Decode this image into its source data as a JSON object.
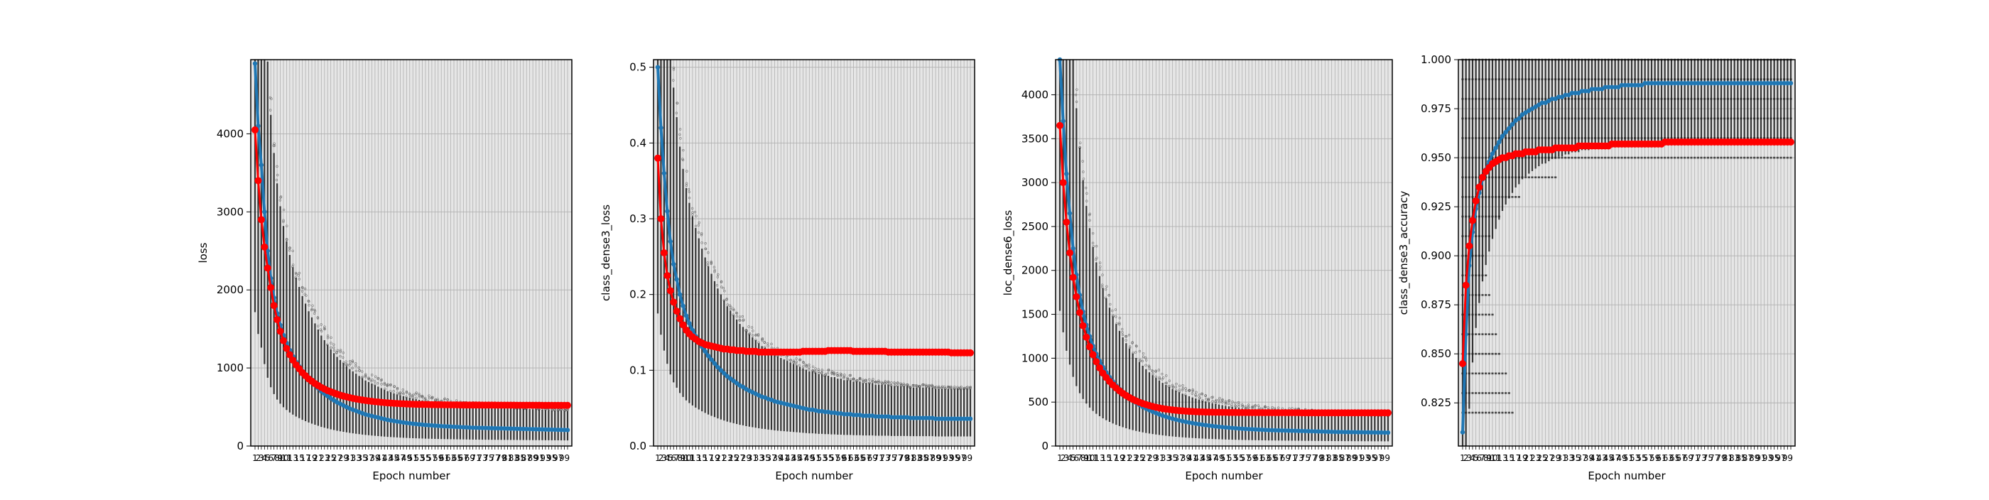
{
  "colors": {
    "train_line": "#1f77b4",
    "val_line": "#ff0000",
    "box_color": "#000000",
    "panel_bg": "#e6e6e6",
    "grid": "#b0b0b0"
  },
  "chart_data": [
    {
      "type": "line",
      "ylabel": "loss",
      "xlabel": "Epoch number",
      "ylim": [
        0,
        4950
      ],
      "yticks": [
        0,
        1000,
        2000,
        3000,
        4000
      ],
      "x_count": 100,
      "grid": true,
      "series": [
        {
          "values": [
            4900,
            4100,
            3600,
            3000,
            2500,
            2150,
            1900,
            1700,
            1550,
            1420,
            1320,
            1230,
            1150,
            1080,
            1020,
            960,
            910,
            860,
            820,
            780,
            740,
            700,
            670,
            640,
            610,
            585,
            560,
            540,
            520,
            500,
            480,
            465,
            450,
            435,
            420,
            405,
            395,
            385,
            375,
            365,
            355,
            345,
            335,
            328,
            321,
            314,
            308,
            302,
            296,
            291,
            286,
            282,
            278,
            274,
            270,
            267,
            264,
            261,
            258,
            255,
            253,
            251,
            249,
            247,
            245,
            243,
            241,
            239,
            237,
            235,
            234,
            233,
            232,
            231,
            230,
            229,
            228,
            227,
            226,
            225,
            224,
            223,
            222,
            221,
            220,
            219,
            218,
            217,
            216,
            215,
            214,
            213,
            212,
            211,
            210,
            209,
            208,
            207,
            206,
            205
          ]
        },
        {
          "values": [
            4050,
            3400,
            2900,
            2550,
            2280,
            2030,
            1800,
            1620,
            1470,
            1350,
            1250,
            1170,
            1100,
            1040,
            990,
            940,
            900,
            860,
            830,
            800,
            775,
            750,
            730,
            710,
            695,
            680,
            665,
            652,
            640,
            630,
            620,
            611,
            603,
            596,
            590,
            584,
            578,
            573,
            568,
            564,
            560,
            556,
            553,
            550,
            547,
            545,
            543,
            541,
            539,
            537,
            536,
            535,
            534,
            533,
            532,
            531,
            530,
            530,
            529,
            529,
            528,
            528,
            527,
            527,
            527,
            526,
            526,
            526,
            525,
            525,
            525,
            525,
            524,
            524,
            524,
            524,
            524,
            523,
            523,
            523,
            523,
            523,
            523,
            522,
            522,
            522,
            522,
            522,
            522,
            522,
            522,
            521,
            521,
            521,
            521,
            521,
            521,
            521,
            521,
            521
          ]
        }
      ]
    },
    {
      "type": "line",
      "ylabel": "class_dense3_loss",
      "xlabel": "Epoch number",
      "ylim": [
        0,
        0.51
      ],
      "yticks": [
        0.0,
        0.1,
        0.2,
        0.3,
        0.4,
        0.5
      ],
      "x_count": 100,
      "grid": true,
      "series": [
        {
          "values": [
            0.5,
            0.42,
            0.36,
            0.31,
            0.27,
            0.24,
            0.22,
            0.2,
            0.185,
            0.172,
            0.162,
            0.153,
            0.145,
            0.138,
            0.131,
            0.125,
            0.119,
            0.114,
            0.109,
            0.104,
            0.1,
            0.096,
            0.092,
            0.089,
            0.086,
            0.083,
            0.08,
            0.078,
            0.075,
            0.073,
            0.071,
            0.069,
            0.067,
            0.065,
            0.064,
            0.062,
            0.061,
            0.059,
            0.058,
            0.057,
            0.056,
            0.055,
            0.054,
            0.053,
            0.052,
            0.051,
            0.05,
            0.049,
            0.048,
            0.048,
            0.047,
            0.046,
            0.046,
            0.045,
            0.045,
            0.044,
            0.044,
            0.043,
            0.043,
            0.042,
            0.042,
            0.042,
            0.041,
            0.041,
            0.041,
            0.04,
            0.04,
            0.04,
            0.04,
            0.039,
            0.039,
            0.039,
            0.039,
            0.039,
            0.038,
            0.038,
            0.038,
            0.038,
            0.038,
            0.038,
            0.037,
            0.037,
            0.037,
            0.037,
            0.037,
            0.037,
            0.037,
            0.037,
            0.036,
            0.036,
            0.036,
            0.036,
            0.036,
            0.036,
            0.036,
            0.036,
            0.036,
            0.036,
            0.036,
            0.036
          ]
        },
        {
          "values": [
            0.38,
            0.3,
            0.255,
            0.225,
            0.205,
            0.19,
            0.178,
            0.168,
            0.16,
            0.153,
            0.148,
            0.144,
            0.141,
            0.138,
            0.136,
            0.134,
            0.133,
            0.132,
            0.131,
            0.13,
            0.129,
            0.128,
            0.128,
            0.127,
            0.127,
            0.126,
            0.126,
            0.126,
            0.125,
            0.125,
            0.125,
            0.125,
            0.124,
            0.124,
            0.124,
            0.124,
            0.124,
            0.124,
            0.124,
            0.124,
            0.124,
            0.124,
            0.124,
            0.124,
            0.124,
            0.124,
            0.125,
            0.125,
            0.125,
            0.125,
            0.125,
            0.125,
            0.125,
            0.125,
            0.126,
            0.126,
            0.126,
            0.126,
            0.126,
            0.126,
            0.126,
            0.126,
            0.125,
            0.125,
            0.125,
            0.125,
            0.125,
            0.125,
            0.125,
            0.125,
            0.125,
            0.125,
            0.125,
            0.124,
            0.124,
            0.124,
            0.124,
            0.124,
            0.124,
            0.124,
            0.124,
            0.124,
            0.124,
            0.124,
            0.124,
            0.124,
            0.124,
            0.124,
            0.124,
            0.124,
            0.124,
            0.124,
            0.124,
            0.123,
            0.123,
            0.123,
            0.123,
            0.123,
            0.123,
            0.123
          ]
        }
      ]
    },
    {
      "type": "line",
      "ylabel": "loc_dense6_loss",
      "xlabel": "Epoch number",
      "ylim": [
        0,
        4400
      ],
      "yticks": [
        0,
        500,
        1000,
        1500,
        2000,
        2500,
        3000,
        3500,
        4000
      ],
      "x_count": 100,
      "grid": true,
      "series": [
        {
          "values": [
            4400,
            3700,
            3100,
            2650,
            2250,
            1950,
            1720,
            1530,
            1380,
            1250,
            1140,
            1050,
            970,
            900,
            840,
            785,
            735,
            690,
            650,
            612,
            578,
            547,
            518,
            492,
            468,
            446,
            426,
            408,
            391,
            375,
            360,
            346,
            334,
            322,
            311,
            301,
            292,
            283,
            275,
            268,
            261,
            255,
            249,
            243,
            238,
            233,
            228,
            224,
            220,
            216,
            212,
            209,
            206,
            203,
            200,
            197,
            195,
            193,
            191,
            189,
            187,
            185,
            183,
            181,
            180,
            179,
            178,
            177,
            176,
            175,
            174,
            173,
            172,
            171,
            170,
            169,
            168,
            167,
            166,
            165,
            164,
            163,
            162,
            161,
            160,
            160,
            159,
            159,
            158,
            158,
            157,
            157,
            156,
            156,
            155,
            155,
            154,
            154,
            153,
            153
          ]
        },
        {
          "values": [
            3650,
            3000,
            2550,
            2200,
            1920,
            1700,
            1520,
            1370,
            1240,
            1130,
            1040,
            960,
            890,
            830,
            780,
            735,
            695,
            660,
            628,
            600,
            575,
            552,
            532,
            514,
            498,
            484,
            472,
            461,
            451,
            442,
            434,
            427,
            421,
            416,
            411,
            407,
            403,
            400,
            397,
            395,
            393,
            391,
            389,
            388,
            387,
            386,
            385,
            384,
            384,
            383,
            383,
            382,
            382,
            382,
            381,
            381,
            381,
            381,
            380,
            380,
            380,
            380,
            380,
            380,
            379,
            379,
            379,
            379,
            379,
            379,
            379,
            379,
            379,
            378,
            378,
            378,
            378,
            378,
            378,
            378,
            378,
            378,
            378,
            378,
            378,
            378,
            378,
            378,
            378,
            378,
            378,
            378,
            378,
            378,
            378,
            378,
            378,
            378,
            378,
            378
          ]
        }
      ]
    },
    {
      "type": "line",
      "ylabel": "class_dense3_accuracy",
      "xlabel": "Epoch number",
      "ylim": [
        0.803,
        1.0
      ],
      "yticks": [
        0.825,
        0.85,
        0.875,
        0.9,
        0.925,
        0.95,
        0.975,
        1.0
      ],
      "x_count": 100,
      "grid": true,
      "series": [
        {
          "values": [
            0.81,
            0.86,
            0.895,
            0.912,
            0.924,
            0.932,
            0.939,
            0.944,
            0.948,
            0.952,
            0.955,
            0.958,
            0.961,
            0.963,
            0.965,
            0.967,
            0.969,
            0.97,
            0.972,
            0.973,
            0.974,
            0.975,
            0.976,
            0.977,
            0.978,
            0.978,
            0.979,
            0.98,
            0.98,
            0.981,
            0.981,
            0.982,
            0.982,
            0.983,
            0.983,
            0.983,
            0.984,
            0.984,
            0.984,
            0.985,
            0.985,
            0.985,
            0.985,
            0.986,
            0.986,
            0.986,
            0.986,
            0.986,
            0.987,
            0.987,
            0.987,
            0.987,
            0.987,
            0.987,
            0.987,
            0.988,
            0.988,
            0.988,
            0.988,
            0.988,
            0.988,
            0.988,
            0.988,
            0.988,
            0.988,
            0.988,
            0.988,
            0.988,
            0.988,
            0.988,
            0.988,
            0.988,
            0.988,
            0.988,
            0.988,
            0.988,
            0.988,
            0.988,
            0.988,
            0.988,
            0.988,
            0.988,
            0.988,
            0.988,
            0.988,
            0.988,
            0.988,
            0.988,
            0.988,
            0.988,
            0.988,
            0.988,
            0.988,
            0.988,
            0.988,
            0.988,
            0.988,
            0.988,
            0.988,
            0.988
          ]
        },
        {
          "values": [
            0.845,
            0.885,
            0.905,
            0.918,
            0.928,
            0.935,
            0.94,
            0.943,
            0.945,
            0.947,
            0.948,
            0.949,
            0.95,
            0.95,
            0.951,
            0.951,
            0.952,
            0.952,
            0.952,
            0.953,
            0.953,
            0.953,
            0.953,
            0.954,
            0.954,
            0.954,
            0.954,
            0.954,
            0.955,
            0.955,
            0.955,
            0.955,
            0.955,
            0.955,
            0.955,
            0.956,
            0.956,
            0.956,
            0.956,
            0.956,
            0.956,
            0.956,
            0.956,
            0.956,
            0.956,
            0.957,
            0.957,
            0.957,
            0.957,
            0.957,
            0.957,
            0.957,
            0.957,
            0.957,
            0.957,
            0.957,
            0.957,
            0.957,
            0.957,
            0.957,
            0.957,
            0.958,
            0.958,
            0.958,
            0.958,
            0.958,
            0.958,
            0.958,
            0.958,
            0.958,
            0.958,
            0.958,
            0.958,
            0.958,
            0.958,
            0.958,
            0.958,
            0.958,
            0.958,
            0.958,
            0.958,
            0.958,
            0.958,
            0.958,
            0.958,
            0.958,
            0.958,
            0.958,
            0.958,
            0.958,
            0.958,
            0.958,
            0.958,
            0.958,
            0.958,
            0.958,
            0.958,
            0.958,
            0.958,
            0.958
          ]
        }
      ]
    }
  ]
}
